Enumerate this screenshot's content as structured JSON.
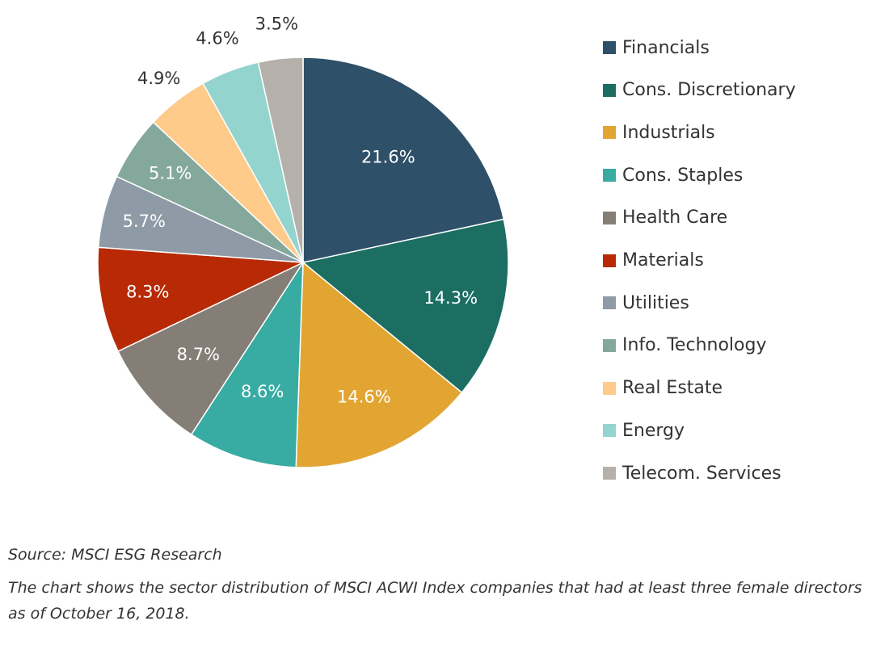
{
  "chart_data": {
    "type": "pie",
    "title": "",
    "categories": [
      "Financials",
      "Cons. Discretionary",
      "Industrials",
      "Cons. Staples",
      "Health Care",
      "Materials",
      "Utilities",
      "Info. Technology",
      "Real Estate",
      "Energy",
      "Telecom. Services"
    ],
    "values": [
      21.6,
      14.3,
      14.6,
      8.6,
      8.7,
      8.3,
      5.7,
      5.1,
      4.9,
      4.6,
      3.5
    ],
    "value_labels": [
      "21.6%",
      "14.3%",
      "14.6%",
      "8.6%",
      "8.7%",
      "8.3%",
      "5.7%",
      "5.1%",
      "4.9%",
      "4.6%",
      "3.5%"
    ],
    "colors": [
      "#2e5068",
      "#1c6e63",
      "#e2a532",
      "#38aba3",
      "#857e77",
      "#b72a05",
      "#8e9aa6",
      "#85a89c",
      "#fecb8b",
      "#94d4cf",
      "#b6b0aa"
    ],
    "label_colors": [
      "#ffffff",
      "#ffffff",
      "#ffffff",
      "#ffffff",
      "#ffffff",
      "#ffffff",
      "#ffffff",
      "#ffffff",
      "#333333",
      "#333333",
      "#333333"
    ],
    "start_angle_deg": 0,
    "direction": "clockwise",
    "legend_position": "right"
  },
  "footer": {
    "source": "Source: MSCI ESG Research",
    "caption": "The chart shows the sector distribution of MSCI ACWI Index companies that had at least three female directors as of October 16, 2018."
  }
}
